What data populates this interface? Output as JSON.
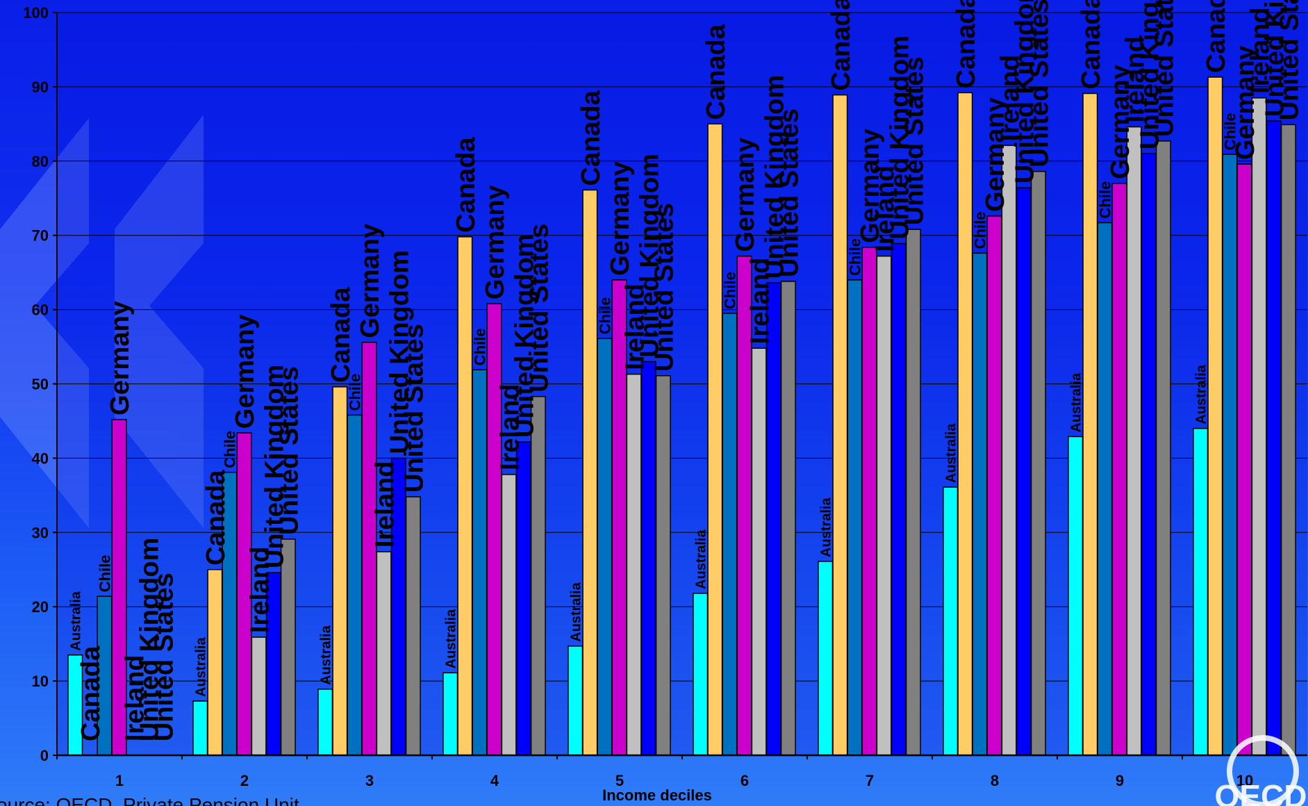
{
  "source_text": "ource: OECD, Private Pension Unit",
  "logo_text": "OECD",
  "chart_data": {
    "type": "bar",
    "xlabel": "Income deciles",
    "ylabel": "",
    "ylim": [
      0,
      100
    ],
    "yticks": [
      0,
      10,
      20,
      30,
      40,
      50,
      60,
      70,
      80,
      90,
      100
    ],
    "grid": true,
    "categories": [
      "1",
      "2",
      "3",
      "4",
      "5",
      "6",
      "7",
      "8",
      "9",
      "10"
    ],
    "series": [
      {
        "name": "Australia",
        "color": "#00ffff",
        "values": [
          13.5,
          7.3,
          8.9,
          11.1,
          14.7,
          21.8,
          26.1,
          36.1,
          42.9,
          44.0
        ]
      },
      {
        "name": "Canada",
        "color": "#ffcc66",
        "values": [
          0,
          25.0,
          49.6,
          69.8,
          76.1,
          85.0,
          88.9,
          89.2,
          89.1,
          91.3
        ]
      },
      {
        "name": "Chile",
        "color": "#0070c0",
        "values": [
          21.4,
          38.1,
          45.8,
          51.9,
          56.1,
          59.5,
          64.0,
          67.6,
          71.7,
          80.9
        ]
      },
      {
        "name": "Germany",
        "color": "#cc00cc",
        "values": [
          45.2,
          43.4,
          55.6,
          60.8,
          64.0,
          67.2,
          68.4,
          72.6,
          77.0,
          79.6
        ]
      },
      {
        "name": "Ireland",
        "color": "#c0c0c0",
        "values": [
          0,
          15.9,
          27.4,
          37.8,
          51.3,
          54.8,
          67.2,
          82.1,
          84.6,
          88.5
        ]
      },
      {
        "name": "United Kingdom",
        "color": "#0000ff",
        "values": [
          0,
          24.6,
          40.0,
          42.2,
          53.0,
          63.6,
          68.9,
          76.4,
          81.0,
          85.4
        ]
      },
      {
        "name": "United States",
        "color": "#808080",
        "values": [
          0,
          29.1,
          34.8,
          48.3,
          51.1,
          63.8,
          70.8,
          78.6,
          82.7,
          84.9
        ]
      }
    ],
    "label_sizes": [
      20,
      38,
      22,
      38,
      38,
      38,
      38
    ]
  }
}
